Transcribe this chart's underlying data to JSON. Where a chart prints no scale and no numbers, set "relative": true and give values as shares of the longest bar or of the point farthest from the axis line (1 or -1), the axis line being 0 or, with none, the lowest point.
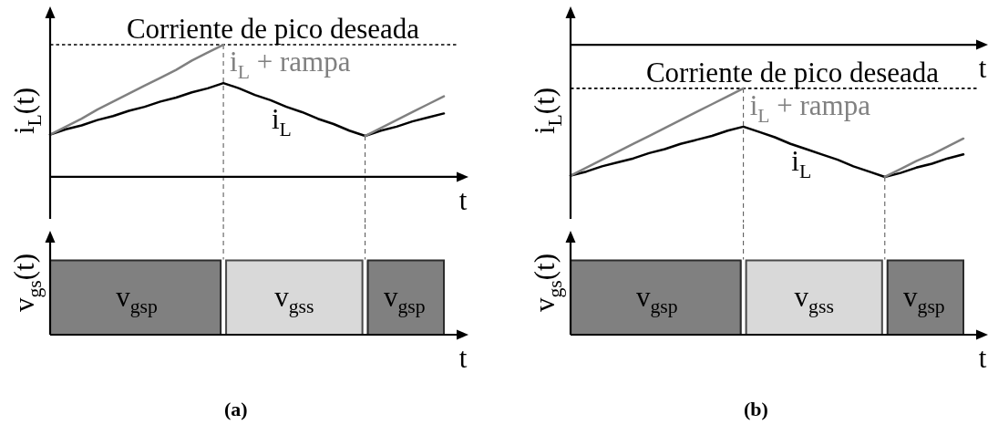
{
  "chart_data": [
    {
      "type": "line",
      "ylabel": "i$_{L}$(t)",
      "xlabel": "t",
      "relative": true,
      "categories": [
        null,
        null,
        null,
        null,
        null,
        null,
        null,
        null,
        null,
        null,
        null,
        null,
        null,
        null,
        null,
        null,
        null,
        null,
        null,
        null,
        null,
        null,
        null,
        null,
        null,
        null
      ],
      "series": [
        {
          "name": "i$_{L}$",
          "color": "#000000",
          "values": [
            0.32,
            0.36,
            0.39,
            0.43,
            0.46,
            0.5,
            0.53,
            0.57,
            0.6,
            0.64,
            0.67,
            0.71,
            0.67,
            0.62,
            0.58,
            0.53,
            0.49,
            0.44,
            0.4,
            0.35,
            0.31,
            0.35,
            0.38,
            0.42,
            0.45,
            0.48
          ]
        },
        {
          "name": "i$_{L}$ + rampa",
          "color": "#808080",
          "values": [
            0.32,
            0.38,
            0.44,
            0.51,
            0.57,
            0.63,
            0.69,
            0.75,
            0.81,
            0.88,
            0.94,
            1,
            null,
            null,
            null,
            null,
            null,
            null,
            null,
            null,
            0.31,
            0.37,
            0.43,
            0.49,
            0.55,
            0.61
          ]
        }
      ],
      "ref_lines": [
        {
          "axis": "y",
          "value": 1,
          "label": "Corriente de pico deseada",
          "color": "#000000",
          "line_style": "dotted"
        }
      ]
    },
    {
      "type": "bar",
      "orientation": "horizontal",
      "stacked": true,
      "relative": true,
      "ylabel": "v$_{gs}$(t)",
      "xlabel": "t",
      "categories": [
        null
      ],
      "series": [
        {
          "name": "v$_{gsp}$",
          "color": "#808080",
          "values": [
            0.44
          ]
        },
        {
          "name": "v$_{gss}$",
          "color": "#d9d9d9",
          "values": [
            0.36
          ]
        },
        {
          "name": "v$_{gsp}$",
          "color": "#808080",
          "values": [
            0.2
          ]
        }
      ],
      "annotations": [
        "(a)"
      ]
    },
    {
      "type": "line",
      "ylabel": "i$_{L}$(t)",
      "xlabel": "t",
      "relative": true,
      "categories": [
        null,
        null,
        null,
        null,
        null,
        null,
        null,
        null,
        null,
        null,
        null,
        null,
        null,
        null,
        null,
        null,
        null,
        null,
        null,
        null,
        null,
        null,
        null,
        null,
        null,
        null
      ],
      "series": [
        {
          "name": "i$_{L}$",
          "color": "#000000",
          "values": [
            -0.99,
            -0.96,
            -0.92,
            -0.89,
            -0.86,
            -0.82,
            -0.79,
            -0.75,
            -0.72,
            -0.69,
            -0.65,
            -0.62,
            -0.66,
            -0.7,
            -0.75,
            -0.79,
            -0.83,
            -0.87,
            -0.92,
            -0.96,
            -1,
            -0.97,
            -0.93,
            -0.9,
            -0.86,
            -0.83
          ]
        },
        {
          "name": "i$_{L}$ + rampa",
          "color": "#808080",
          "values": [
            -0.99,
            -0.93,
            -0.87,
            -0.81,
            -0.75,
            -0.69,
            -0.63,
            -0.57,
            -0.51,
            -0.45,
            -0.39,
            -0.33,
            null,
            null,
            null,
            null,
            null,
            null,
            null,
            null,
            -1,
            -0.94,
            -0.88,
            -0.83,
            -0.77,
            -0.71
          ]
        }
      ],
      "ref_lines": [
        {
          "axis": "y",
          "value": -0.33,
          "label": "Corriente de pico deseada",
          "color": "#000000",
          "line_style": "dotted"
        }
      ]
    },
    {
      "type": "bar",
      "orientation": "horizontal",
      "stacked": true,
      "relative": true,
      "ylabel": "v$_{gs}$(t)",
      "xlabel": "t",
      "categories": [
        null
      ],
      "series": [
        {
          "name": "v$_{gsp}$",
          "color": "#808080",
          "values": [
            0.44
          ]
        },
        {
          "name": "v$_{gss}$",
          "color": "#d9d9d9",
          "values": [
            0.36
          ]
        },
        {
          "name": "v$_{gsp}$",
          "color": "#808080",
          "values": [
            0.2
          ]
        }
      ],
      "annotations": [
        "(b)"
      ]
    }
  ]
}
